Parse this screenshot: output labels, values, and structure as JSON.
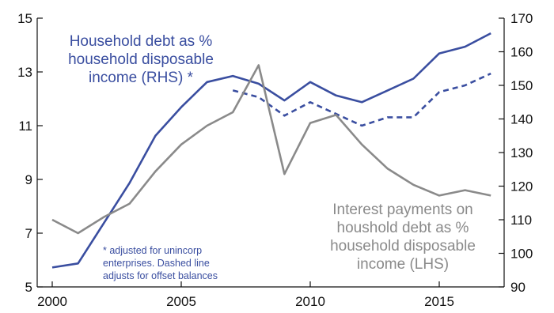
{
  "chart_data": {
    "type": "line",
    "x_ticks": [
      "2000",
      "2005",
      "2010",
      "2015"
    ],
    "left_axis": {
      "ylim": [
        5,
        15
      ],
      "ticks": [
        "5",
        "7",
        "9",
        "11",
        "13",
        "15"
      ]
    },
    "right_axis": {
      "ylim": [
        90,
        170
      ],
      "ticks": [
        "90",
        "100",
        "110",
        "120",
        "130",
        "140",
        "150",
        "160",
        "170"
      ]
    },
    "series": [
      {
        "name": "Household debt as % household disposable income (RHS)",
        "axis": "right",
        "color": "#3a4ea0",
        "style": "solid",
        "x": [
          2000,
          2001,
          2002,
          2003,
          2004,
          2005,
          2006,
          2007,
          2008,
          2009,
          2010,
          2011,
          2012,
          2013,
          2014,
          2015,
          2016,
          2017
        ],
        "y": [
          95.8,
          97.0,
          109.0,
          121.0,
          135.0,
          143.5,
          151.0,
          152.8,
          150.5,
          145.5,
          151.0,
          147.0,
          145.0,
          148.5,
          152.0,
          159.5,
          161.5,
          165.5
        ]
      },
      {
        "name": "Household debt as % household disposable income (RHS), adjusted",
        "axis": "right",
        "color": "#3a4ea0",
        "style": "dashed",
        "x": [
          2007,
          2008,
          2009,
          2010,
          2011,
          2012,
          2013,
          2014,
          2015,
          2016,
          2017
        ],
        "y": [
          148.5,
          146.5,
          141.0,
          145.0,
          141.5,
          138.0,
          140.5,
          140.5,
          148.0,
          150.0,
          153.5
        ]
      },
      {
        "name": "Interest payments on houshold debt as % household disposable income (LHS)",
        "axis": "left",
        "color": "#8a8a8a",
        "style": "solid",
        "x": [
          2000,
          2001,
          2002,
          2003,
          2004,
          2005,
          2006,
          2007,
          2008,
          2009,
          2010,
          2011,
          2012,
          2013,
          2014,
          2015,
          2016,
          2017
        ],
        "y": [
          7.5,
          7.0,
          7.6,
          8.1,
          9.3,
          10.3,
          11.0,
          11.5,
          13.25,
          9.2,
          11.1,
          11.4,
          10.3,
          9.4,
          8.8,
          8.4,
          8.6,
          8.4
        ]
      }
    ],
    "annotations": {
      "blue_label": [
        "Household debt as %",
        "household disposable",
        "income (RHS) *"
      ],
      "grey_label": [
        "Interest payments on",
        "houshold debt as %",
        "household disposable",
        "income (LHS)"
      ],
      "note": [
        "* adjusted for unincorp",
        "enterprises. Dashed line",
        "adjusts for offset balances"
      ]
    }
  }
}
